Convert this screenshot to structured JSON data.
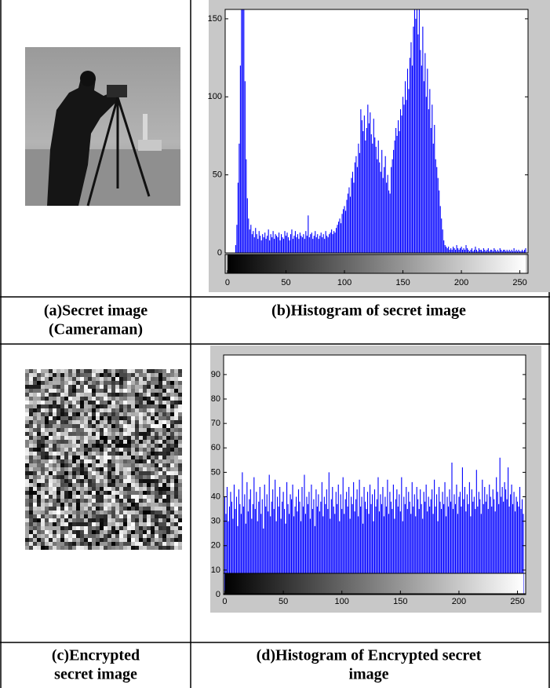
{
  "table": {
    "rows": [
      {
        "left_caption": [
          "(a)Secret image",
          "(Cameraman)"
        ],
        "right_caption": [
          "(b)Histogram of secret image"
        ]
      },
      {
        "left_caption": [
          "(c)Encrypted",
          "secret image"
        ],
        "right_caption": [
          "(d)Histogram of Encrypted secret",
          "image"
        ]
      }
    ]
  },
  "chart_data": [
    {
      "type": "bar",
      "color": "#0000ff",
      "xlim": [
        -2,
        257
      ],
      "ylim": [
        0,
        156
      ],
      "xticks": [
        0,
        50,
        100,
        150,
        200,
        250
      ],
      "yticks": [
        0,
        50,
        100,
        150
      ],
      "x": [
        0,
        1,
        2,
        3,
        4,
        5,
        6,
        7,
        8,
        9,
        10,
        11,
        12,
        13,
        14,
        15,
        16,
        17,
        18,
        19,
        20,
        21,
        22,
        23,
        24,
        25,
        26,
        27,
        28,
        29,
        30,
        31,
        32,
        33,
        34,
        35,
        36,
        37,
        38,
        39,
        40,
        41,
        42,
        43,
        44,
        45,
        46,
        47,
        48,
        49,
        50,
        51,
        52,
        53,
        54,
        55,
        56,
        57,
        58,
        59,
        60,
        61,
        62,
        63,
        64,
        65,
        66,
        67,
        68,
        69,
        70,
        71,
        72,
        73,
        74,
        75,
        76,
        77,
        78,
        79,
        80,
        81,
        82,
        83,
        84,
        85,
        86,
        87,
        88,
        89,
        90,
        91,
        92,
        93,
        94,
        95,
        96,
        97,
        98,
        99,
        100,
        101,
        102,
        103,
        104,
        105,
        106,
        107,
        108,
        109,
        110,
        111,
        112,
        113,
        114,
        115,
        116,
        117,
        118,
        119,
        120,
        121,
        122,
        123,
        124,
        125,
        126,
        127,
        128,
        129,
        130,
        131,
        132,
        133,
        134,
        135,
        136,
        137,
        138,
        139,
        140,
        141,
        142,
        143,
        144,
        145,
        146,
        147,
        148,
        149,
        150,
        151,
        152,
        153,
        154,
        155,
        156,
        157,
        158,
        159,
        160,
        161,
        162,
        163,
        164,
        165,
        166,
        167,
        168,
        169,
        170,
        171,
        172,
        173,
        174,
        175,
        176,
        177,
        178,
        179,
        180,
        181,
        182,
        183,
        184,
        185,
        186,
        187,
        188,
        189,
        190,
        191,
        192,
        193,
        194,
        195,
        196,
        197,
        198,
        199,
        200,
        201,
        202,
        203,
        204,
        205,
        206,
        207,
        208,
        209,
        210,
        211,
        212,
        213,
        214,
        215,
        216,
        217,
        218,
        219,
        220,
        221,
        222,
        223,
        224,
        225,
        226,
        227,
        228,
        229,
        230,
        231,
        232,
        233,
        234,
        235,
        236,
        237,
        238,
        239,
        240,
        241,
        242,
        243,
        244,
        245,
        246,
        247,
        248,
        249,
        250,
        251,
        252,
        253,
        254,
        255
      ],
      "values": [
        0,
        0,
        0,
        0,
        0,
        0,
        0,
        5,
        18,
        45,
        70,
        120,
        156,
        156,
        156,
        110,
        60,
        35,
        22,
        15,
        18,
        12,
        14,
        10,
        16,
        12,
        9,
        14,
        11,
        8,
        12,
        10,
        13,
        9,
        11,
        15,
        8,
        12,
        10,
        14,
        9,
        12,
        11,
        10,
        13,
        8,
        12,
        10,
        9,
        14,
        11,
        13,
        10,
        8,
        12,
        15,
        9,
        11,
        14,
        10,
        12,
        9,
        13,
        11,
        10,
        12,
        9,
        14,
        11,
        24,
        10,
        12,
        13,
        9,
        11,
        14,
        10,
        12,
        9,
        11,
        13,
        10,
        12,
        9,
        14,
        11,
        10,
        12,
        13,
        15,
        12,
        14,
        13,
        16,
        18,
        20,
        22,
        19,
        25,
        28,
        30,
        27,
        34,
        38,
        42,
        36,
        48,
        52,
        45,
        58,
        62,
        55,
        70,
        64,
        92,
        85,
        78,
        88,
        72,
        80,
        95,
        83,
        90,
        76,
        70,
        86,
        74,
        68,
        60,
        72,
        58,
        52,
        66,
        48,
        55,
        62,
        45,
        50,
        40,
        38,
        55,
        60,
        66,
        72,
        80,
        75,
        85,
        78,
        92,
        88,
        100,
        95,
        110,
        98,
        118,
        105,
        125,
        135,
        120,
        145,
        156,
        150,
        156,
        140,
        156,
        130,
        120,
        145,
        110,
        128,
        100,
        118,
        92,
        105,
        80,
        95,
        70,
        82,
        60,
        55,
        48,
        40,
        30,
        22,
        15,
        8,
        5,
        4,
        3,
        4,
        2,
        3,
        2,
        4,
        3,
        2,
        5,
        3,
        2,
        3,
        4,
        2,
        3,
        2,
        5,
        3,
        2,
        1,
        2,
        3,
        1,
        2,
        4,
        2,
        1,
        3,
        2,
        2,
        1,
        3,
        2,
        1,
        2,
        3,
        1,
        2,
        2,
        1,
        3,
        2,
        1,
        2,
        1,
        3,
        2,
        1,
        2,
        2,
        1,
        2,
        1,
        2,
        1,
        2,
        1,
        3,
        1,
        2,
        1,
        2,
        1,
        1,
        2,
        1,
        2,
        3
      ]
    },
    {
      "type": "bar",
      "color": "#0000ff",
      "xlim": [
        -1,
        257
      ],
      "ylim": [
        0,
        98
      ],
      "xticks": [
        0,
        50,
        100,
        150,
        200,
        250
      ],
      "yticks": [
        0,
        10,
        20,
        30,
        40,
        50,
        60,
        70,
        80,
        90
      ],
      "x": [
        0,
        1,
        2,
        3,
        4,
        5,
        6,
        7,
        8,
        9,
        10,
        11,
        12,
        13,
        14,
        15,
        16,
        17,
        18,
        19,
        20,
        21,
        22,
        23,
        24,
        25,
        26,
        27,
        28,
        29,
        30,
        31,
        32,
        33,
        34,
        35,
        36,
        37,
        38,
        39,
        40,
        41,
        42,
        43,
        44,
        45,
        46,
        47,
        48,
        49,
        50,
        51,
        52,
        53,
        54,
        55,
        56,
        57,
        58,
        59,
        60,
        61,
        62,
        63,
        64,
        65,
        66,
        67,
        68,
        69,
        70,
        71,
        72,
        73,
        74,
        75,
        76,
        77,
        78,
        79,
        80,
        81,
        82,
        83,
        84,
        85,
        86,
        87,
        88,
        89,
        90,
        91,
        92,
        93,
        94,
        95,
        96,
        97,
        98,
        99,
        100,
        101,
        102,
        103,
        104,
        105,
        106,
        107,
        108,
        109,
        110,
        111,
        112,
        113,
        114,
        115,
        116,
        117,
        118,
        119,
        120,
        121,
        122,
        123,
        124,
        125,
        126,
        127,
        128,
        129,
        130,
        131,
        132,
        133,
        134,
        135,
        136,
        137,
        138,
        139,
        140,
        141,
        142,
        143,
        144,
        145,
        146,
        147,
        148,
        149,
        150,
        151,
        152,
        153,
        154,
        155,
        156,
        157,
        158,
        159,
        160,
        161,
        162,
        163,
        164,
        165,
        166,
        167,
        168,
        169,
        170,
        171,
        172,
        173,
        174,
        175,
        176,
        177,
        178,
        179,
        180,
        181,
        182,
        183,
        184,
        185,
        186,
        187,
        188,
        189,
        190,
        191,
        192,
        193,
        194,
        195,
        196,
        197,
        198,
        199,
        200,
        201,
        202,
        203,
        204,
        205,
        206,
        207,
        208,
        209,
        210,
        211,
        212,
        213,
        214,
        215,
        216,
        217,
        218,
        219,
        220,
        221,
        222,
        223,
        224,
        225,
        226,
        227,
        228,
        229,
        230,
        231,
        232,
        233,
        234,
        235,
        236,
        237,
        238,
        239,
        240,
        241,
        242,
        243,
        244,
        245,
        246,
        247,
        248,
        249,
        250,
        251,
        252,
        253,
        254,
        255
      ],
      "values": [
        40,
        33,
        44,
        30,
        36,
        42,
        38,
        31,
        45,
        35,
        40,
        28,
        43,
        37,
        33,
        50,
        36,
        41,
        29,
        46,
        34,
        39,
        43,
        31,
        37,
        48,
        35,
        42,
        30,
        38,
        44,
        33,
        39,
        27,
        45,
        36,
        41,
        34,
        49,
        32,
        38,
        43,
        35,
        47,
        30,
        40,
        36,
        44,
        31,
        38,
        42,
        35,
        29,
        46,
        37,
        33,
        41,
        39,
        45,
        32,
        36,
        40,
        34,
        43,
        38,
        30,
        44,
        36,
        49,
        33,
        40,
        37,
        42,
        31,
        45,
        35,
        39,
        28,
        43,
        36,
        41,
        34,
        38,
        46,
        32,
        40,
        37,
        43,
        35,
        50,
        31,
        39,
        44,
        36,
        33,
        42,
        37,
        45,
        30,
        41,
        35,
        48,
        33,
        39,
        42,
        36,
        44,
        31,
        40,
        37,
        46,
        34,
        39,
        43,
        32,
        47,
        36,
        40,
        29,
        44,
        38,
        35,
        42,
        33,
        45,
        37,
        41,
        30,
        43,
        36,
        39,
        48,
        34,
        41,
        37,
        44,
        32,
        40,
        36,
        47,
        33,
        42,
        38,
        35,
        45,
        31,
        39,
        43,
        36,
        41,
        34,
        48,
        30,
        40,
        37,
        44,
        35,
        42,
        38,
        33,
        46,
        36,
        41,
        32,
        44,
        39,
        35,
        43,
        37,
        31,
        42,
        38,
        45,
        34,
        40,
        36,
        39,
        43,
        33,
        47,
        36,
        41,
        30,
        44,
        38,
        35,
        42,
        37,
        46,
        32,
        40,
        36,
        43,
        38,
        54,
        35,
        41,
        37,
        45,
        33,
        40,
        42,
        36,
        52,
        39,
        44,
        34,
        41,
        37,
        46,
        32,
        43,
        38,
        40,
        35,
        51,
        36,
        42,
        39,
        33,
        47,
        37,
        44,
        38,
        41,
        35,
        45,
        40,
        36,
        43,
        39,
        34,
        48,
        42,
        37,
        56,
        40,
        44,
        38,
        46,
        43,
        39,
        52,
        36,
        41,
        45,
        37,
        42,
        34,
        40,
        38,
        36,
        44,
        35,
        39,
        33
      ]
    }
  ]
}
